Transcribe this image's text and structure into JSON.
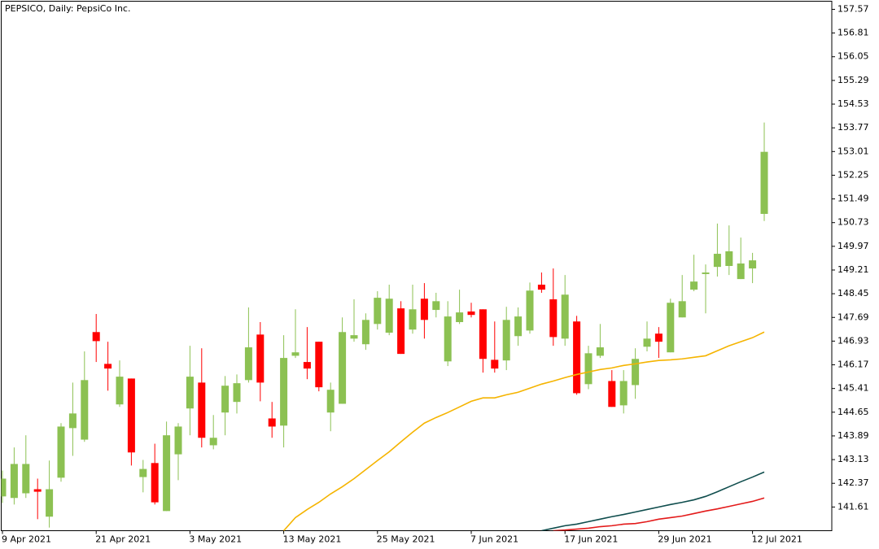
{
  "chart_data": {
    "type": "candlestick",
    "title": "PEPSICO, Daily:  PepsiCo Inc.",
    "categories": [
      "9 Apr 2021",
      null,
      null,
      null,
      null,
      null,
      null,
      null,
      "21 Apr 2021",
      null,
      null,
      null,
      null,
      null,
      null,
      null,
      "3 May 2021",
      null,
      null,
      null,
      null,
      null,
      null,
      null,
      "13 May 2021",
      null,
      null,
      null,
      null,
      null,
      null,
      null,
      "25 May 2021",
      null,
      null,
      null,
      null,
      null,
      null,
      null,
      "7 Jun 2021",
      null,
      null,
      null,
      null,
      null,
      null,
      null,
      "17 Jun 2021",
      null,
      null,
      null,
      null,
      null,
      null,
      null,
      "29 Jun 2021",
      null,
      null,
      null,
      null,
      null,
      null,
      null,
      "12 Jul 2021",
      null
    ],
    "open": [
      141.95,
      141.9,
      142.05,
      142.18,
      141.3,
      142.55,
      144.14,
      143.77,
      147.22,
      146.2,
      144.9,
      145.73,
      142.57,
      143.02,
      141.48,
      143.3,
      144.77,
      145.6,
      143.59,
      144.64,
      144.98,
      145.68,
      147.14,
      144.45,
      144.22,
      146.46,
      146.26,
      146.91,
      144.64,
      144.92,
      147.01,
      146.83,
      147.48,
      147.2,
      147.98,
      147.3,
      148.29,
      147.93,
      146.28,
      147.54,
      147.88,
      147.95,
      146.33,
      146.31,
      147.09,
      147.27,
      148.74,
      148.27,
      147.01,
      147.56,
      145.55,
      146.46,
      145.65,
      144.87,
      145.52,
      146.75,
      147.17,
      146.57,
      147.69,
      148.58,
      149.08,
      149.31,
      149.34,
      148.92,
      149.26,
      151.01
    ],
    "high": [
      142.78,
      143.52,
      143.91,
      142.52,
      143.1,
      144.3,
      145.6,
      146.6,
      147.8,
      146.91,
      146.31,
      145.73,
      143.12,
      143.64,
      144.35,
      144.3,
      146.78,
      146.7,
      144.56,
      145.81,
      145.86,
      148.01,
      147.54,
      144.98,
      147.12,
      147.95,
      147.38,
      146.91,
      145.6,
      147.69,
      148.27,
      147.82,
      148.53,
      148.74,
      148.21,
      148.74,
      148.79,
      148.48,
      148.21,
      148.58,
      148.16,
      147.95,
      147.56,
      148.03,
      148.01,
      148.81,
      149.13,
      149.26,
      149.05,
      147.74,
      146.78,
      147.48,
      146.0,
      146.0,
      146.7,
      147.56,
      147.38,
      148.29,
      149.05,
      149.7,
      149.39,
      150.7,
      150.64,
      150.25,
      149.76,
      153.94
    ],
    "low": [
      141.74,
      141.69,
      141.9,
      141.22,
      140.95,
      142.42,
      143.25,
      143.7,
      146.26,
      145.34,
      144.82,
      142.94,
      142.08,
      141.69,
      141.48,
      142.47,
      143.91,
      143.52,
      143.46,
      143.91,
      144.61,
      145.6,
      145.0,
      143.83,
      143.52,
      146.39,
      145.71,
      145.32,
      144.04,
      144.92,
      146.91,
      146.65,
      147.3,
      147.12,
      146.52,
      147.17,
      147.01,
      147.69,
      146.13,
      147.48,
      147.69,
      145.92,
      145.92,
      146.0,
      146.78,
      147.17,
      148.48,
      146.78,
      146.78,
      145.21,
      145.39,
      146.39,
      144.82,
      144.61,
      145.08,
      146.6,
      146.39,
      146.57,
      147.69,
      148.53,
      147.82,
      149.0,
      149.05,
      148.92,
      148.79,
      150.78
    ],
    "close": [
      142.52,
      142.99,
      142.99,
      142.1,
      142.18,
      144.19,
      144.61,
      145.68,
      146.93,
      146.05,
      145.79,
      143.36,
      142.83,
      141.76,
      143.91,
      144.19,
      145.79,
      143.83,
      143.83,
      145.5,
      145.58,
      146.73,
      145.6,
      144.19,
      146.39,
      146.57,
      146.05,
      145.45,
      145.37,
      147.22,
      147.12,
      147.61,
      148.32,
      148.29,
      146.52,
      147.95,
      147.61,
      148.21,
      147.72,
      147.85,
      147.77,
      146.36,
      146.05,
      147.61,
      147.72,
      148.55,
      148.58,
      147.06,
      148.42,
      145.26,
      146.54,
      146.73,
      144.82,
      145.65,
      146.36,
      147.01,
      146.91,
      148.16,
      148.21,
      148.84,
      149.13,
      149.73,
      149.81,
      149.42,
      149.52,
      153.0
    ],
    "up_color": "#8cc152",
    "down_color": "#ff0000",
    "overlays": [
      {
        "type": "line",
        "color": "#f5b400",
        "values": [
          null,
          null,
          null,
          null,
          null,
          null,
          null,
          null,
          null,
          null,
          null,
          null,
          null,
          null,
          null,
          null,
          null,
          null,
          null,
          null,
          null,
          null,
          null,
          null,
          140.85,
          141.27,
          141.53,
          141.76,
          142.03,
          142.26,
          142.52,
          142.81,
          143.1,
          143.38,
          143.7,
          144.01,
          144.3,
          144.48,
          144.64,
          144.82,
          145.0,
          145.11,
          145.11,
          145.21,
          145.29,
          145.42,
          145.55,
          145.65,
          145.76,
          145.86,
          145.94,
          146.02,
          146.07,
          146.15,
          146.2,
          146.26,
          146.31,
          146.33,
          146.36,
          146.41,
          146.46,
          146.62,
          146.78,
          146.91,
          147.04,
          147.22
        ]
      },
      {
        "type": "line",
        "color": "#0f4d4d",
        "values": [
          null,
          null,
          null,
          null,
          null,
          null,
          null,
          null,
          null,
          null,
          null,
          null,
          null,
          null,
          null,
          null,
          null,
          null,
          null,
          null,
          null,
          null,
          null,
          null,
          null,
          null,
          null,
          null,
          null,
          null,
          null,
          null,
          null,
          null,
          null,
          null,
          null,
          null,
          null,
          null,
          null,
          null,
          null,
          null,
          null,
          null,
          140.85,
          140.93,
          141.01,
          141.06,
          141.14,
          141.22,
          141.3,
          141.37,
          141.45,
          141.53,
          141.61,
          141.69,
          141.76,
          141.84,
          141.95,
          142.1,
          142.26,
          142.42,
          142.57,
          142.73
        ]
      },
      {
        "type": "line",
        "color": "#e31a1a",
        "values": [
          null,
          null,
          null,
          null,
          null,
          null,
          null,
          null,
          null,
          null,
          null,
          null,
          null,
          null,
          null,
          null,
          null,
          null,
          null,
          null,
          null,
          null,
          null,
          null,
          null,
          null,
          null,
          null,
          null,
          null,
          null,
          null,
          null,
          null,
          null,
          null,
          null,
          null,
          null,
          null,
          null,
          null,
          null,
          null,
          null,
          null,
          null,
          140.85,
          140.87,
          140.9,
          140.93,
          140.98,
          141.01,
          141.06,
          141.08,
          141.14,
          141.22,
          141.27,
          141.32,
          141.4,
          141.48,
          141.55,
          141.63,
          141.71,
          141.79,
          141.9
        ]
      }
    ],
    "ylim": [
      140.85,
      157.83
    ],
    "yticks": [
      157.57,
      156.81,
      156.05,
      155.29,
      154.53,
      153.77,
      153.01,
      152.25,
      151.49,
      150.73,
      149.97,
      149.21,
      148.45,
      147.69,
      146.93,
      146.17,
      145.41,
      144.65,
      143.89,
      143.13,
      142.37,
      141.61
    ],
    "grid": false
  }
}
